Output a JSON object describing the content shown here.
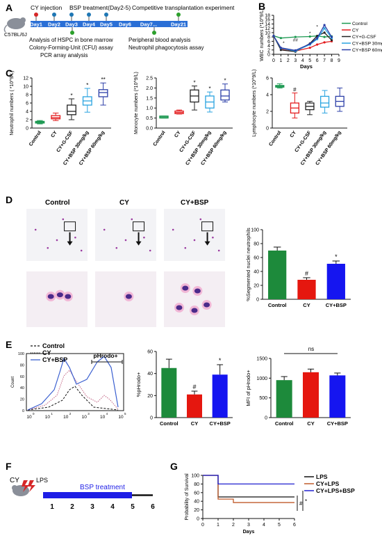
{
  "panels": {
    "A": {
      "letter": "A",
      "events_top": [
        "CY injection",
        "BSP treatment(Day2-5)",
        "Competitive transplantation experiment"
      ],
      "days": [
        "Day1",
        "Day2",
        "Day3",
        "Day4",
        "Day5",
        "Day6",
        "Day7...",
        "Day21"
      ],
      "mouse_strain": "C57BL/6J",
      "notes_bottom_left": [
        "Analysis of HSPC in bone marrow",
        "Colony-Forming-Unit (CFU) assay",
        "PCR array analysis"
      ],
      "notes_bottom_right": [
        "Peripheral blood analysis",
        "Neutrophil phagocytosis assay"
      ]
    },
    "B": {
      "letter": "B"
    },
    "C": {
      "letter": "C"
    },
    "D": {
      "letter": "D",
      "image_labels": [
        "Control",
        "CY",
        "CY+BSP"
      ]
    },
    "E": {
      "letter": "E",
      "flow_legend": [
        "Control",
        "CY",
        "CY+BSP"
      ],
      "gate_label": "pHrodo+",
      "flow_ylabel": "Count",
      "flow_xticks": [
        "10",
        "10",
        "10",
        "10",
        "10",
        "10"
      ],
      "flow_xexp": [
        "0",
        "1",
        "2",
        "3",
        "4",
        "5"
      ],
      "flow_yticks": [
        "0",
        "20",
        "40",
        "60",
        "80",
        "100"
      ],
      "ns_label": "ns"
    },
    "F": {
      "letter": "F",
      "cy_label": "CY",
      "lps_label": "LPS",
      "treatment_label": "BSP treatment",
      "days": [
        "1",
        "2",
        "3",
        "4",
        "5",
        "6"
      ]
    },
    "G": {
      "letter": "G"
    }
  },
  "colors": {
    "control": "#1a9850",
    "cy": "#e31a1c",
    "cy_gcsf": "#222222",
    "bsp30": "#29a3e0",
    "bsp60": "#2c3fa8",
    "bsp": "#1f1ff5",
    "bar_green": "#1d8a3b",
    "bar_red": "#e5170f",
    "bar_blue": "#1515f0",
    "surv_lps": "#111111",
    "surv_cylps": "#c05a2a",
    "surv_bsp": "#1f1fd0"
  },
  "chart_data": [
    {
      "panel": "B",
      "type": "line",
      "ylabel": "WBC numbers (*10^9/L)",
      "xlabel": "Days",
      "x": [
        0,
        1,
        3,
        5,
        6,
        7,
        8
      ],
      "xlim": [
        0,
        9
      ],
      "ylim": [
        0,
        18
      ],
      "xticks": [
        "0",
        "1",
        "2",
        "3",
        "4",
        "5",
        "6",
        "7",
        "8",
        "9"
      ],
      "yticks": [
        "0",
        "2",
        "4",
        "6",
        "8",
        "10",
        "12",
        "14",
        "16",
        "18"
      ],
      "series": [
        {
          "name": "Control",
          "values": [
            8.5,
            7.5,
            8.0,
            8.2,
            8.5,
            8.0,
            8.3
          ]
        },
        {
          "name": "CY",
          "values": [
            8.5,
            2.5,
            1.5,
            3.0,
            4.5,
            5.5,
            6.0
          ]
        },
        {
          "name": "CY+G-CSF",
          "values": [
            8.5,
            2.0,
            1.2,
            5.0,
            8.5,
            10.0,
            6.5
          ]
        },
        {
          "name": "CY+BSP 30mg/kg",
          "values": [
            8.5,
            2.8,
            1.5,
            4.5,
            7.0,
            12.0,
            7.5
          ]
        },
        {
          "name": "CY+BSP 60mg/kg",
          "values": [
            8.5,
            3.0,
            1.8,
            4.8,
            7.5,
            13.5,
            8.0
          ]
        }
      ],
      "sig_marks": [
        "*",
        "##",
        "*",
        "*"
      ]
    },
    {
      "panel": "C1",
      "type": "box",
      "ylabel": "Neutrophil numbers ( *10^9/L)",
      "ylim": [
        0,
        12
      ],
      "yticks": [
        "0",
        "2",
        "4",
        "6",
        "8",
        "10",
        "12"
      ],
      "categories": [
        "Control",
        "CY",
        "CY+G-CSF",
        "CY+BSP 30mg/kg",
        "CY+BSP 60mg/kg"
      ],
      "boxes": [
        {
          "min": 1.0,
          "q1": 1.2,
          "median": 1.4,
          "q3": 1.6,
          "max": 1.8
        },
        {
          "min": 1.8,
          "q1": 2.2,
          "median": 2.5,
          "q3": 3.0,
          "max": 3.6
        },
        {
          "min": 2.0,
          "q1": 3.2,
          "median": 4.0,
          "q3": 5.5,
          "max": 7.0
        },
        {
          "min": 3.8,
          "q1": 5.5,
          "median": 6.5,
          "q3": 7.5,
          "max": 9.5
        },
        {
          "min": 5.5,
          "q1": 7.5,
          "median": 8.5,
          "q3": 9.2,
          "max": 10.8
        }
      ],
      "sig": [
        "",
        "",
        "*",
        "*",
        "**"
      ]
    },
    {
      "panel": "C2",
      "type": "box",
      "ylabel": "Monocyte numbers (*10^9/L)",
      "ylim": [
        0,
        2.5
      ],
      "yticks": [
        "0.0",
        "0.5",
        "1.0",
        "1.5",
        "2.0",
        "2.5"
      ],
      "categories": [
        "Control",
        "CY",
        "CY+G-CSF",
        "CY+BSP 30mg/kg",
        "CY+BSP 60mg/kg"
      ],
      "boxes": [
        {
          "min": 0.5,
          "q1": 0.5,
          "median": 0.55,
          "q3": 0.6,
          "max": 0.6
        },
        {
          "min": 0.7,
          "q1": 0.72,
          "median": 0.78,
          "q3": 0.85,
          "max": 0.9
        },
        {
          "min": 0.9,
          "q1": 1.3,
          "median": 1.6,
          "q3": 1.9,
          "max": 2.1
        },
        {
          "min": 0.8,
          "q1": 1.0,
          "median": 1.3,
          "q3": 1.6,
          "max": 1.8
        },
        {
          "min": 1.3,
          "q1": 1.4,
          "median": 1.6,
          "q3": 1.9,
          "max": 2.2
        }
      ],
      "sig": [
        "",
        "",
        "*",
        "*",
        "*"
      ]
    },
    {
      "panel": "C3",
      "type": "box",
      "ylabel": "Lymphocyte numbers (*10^9/L)",
      "ylim": [
        0,
        6
      ],
      "yticks": [
        "0",
        "2",
        "4",
        "6"
      ],
      "categories": [
        "Control",
        "CY",
        "CY+G-CSF",
        "CY+BSP 30mg/kg",
        "CY+BSP 60mg/kg"
      ],
      "boxes": [
        {
          "min": 4.8,
          "q1": 4.9,
          "median": 5.0,
          "q3": 5.1,
          "max": 5.3
        },
        {
          "min": 1.2,
          "q1": 1.8,
          "median": 2.4,
          "q3": 3.0,
          "max": 4.2
        },
        {
          "min": 1.6,
          "q1": 2.2,
          "median": 2.6,
          "q3": 3.0,
          "max": 3.2
        },
        {
          "min": 1.8,
          "q1": 2.5,
          "median": 3.0,
          "q3": 3.8,
          "max": 4.5
        },
        {
          "min": 2.0,
          "q1": 2.6,
          "median": 3.2,
          "q3": 3.8,
          "max": 4.8
        }
      ],
      "sig": [
        "",
        "#",
        "",
        "",
        ""
      ]
    },
    {
      "panel": "D",
      "type": "bar",
      "ylabel": "%Segmented nuclei neutrophils",
      "ylim": [
        0,
        100
      ],
      "yticks": [
        "0",
        "20",
        "40",
        "60",
        "80",
        "100"
      ],
      "categories": [
        "Control",
        "CY",
        "CY+BSP"
      ],
      "values": [
        70,
        28,
        51
      ],
      "errors": [
        5,
        3,
        4
      ],
      "sig": [
        "",
        "#",
        "*"
      ]
    },
    {
      "panel": "E2",
      "type": "bar",
      "ylabel": "%pHrodo+",
      "ylim": [
        0,
        60
      ],
      "yticks": [
        "0",
        "20",
        "40",
        "60"
      ],
      "categories": [
        "Control",
        "CY",
        "CY+BSP"
      ],
      "values": [
        45,
        21,
        39
      ],
      "errors": [
        8,
        3,
        9
      ],
      "sig": [
        "",
        "#",
        "*"
      ]
    },
    {
      "panel": "E3",
      "type": "bar",
      "ylabel": "MFI of pHrodo+",
      "ylim": [
        0,
        1500
      ],
      "yticks": [
        "0",
        "500",
        "1000",
        "1500"
      ],
      "categories": [
        "Control",
        "CY",
        "CY+BSP"
      ],
      "values": [
        950,
        1150,
        1070
      ],
      "errors": [
        90,
        80,
        60
      ],
      "sig": [
        "",
        "",
        ""
      ]
    },
    {
      "panel": "G",
      "type": "line",
      "ylabel": "Probability of Survival",
      "xlabel": "Days",
      "xlim": [
        0,
        6
      ],
      "ylim": [
        0,
        100
      ],
      "xticks": [
        "0",
        "1",
        "2",
        "3",
        "4",
        "5",
        "6"
      ],
      "yticks": [
        "0",
        "20",
        "40",
        "60",
        "80",
        "100"
      ],
      "series": [
        {
          "name": "LPS",
          "steps": [
            [
              0,
              100
            ],
            [
              1,
              100
            ],
            [
              1,
              50
            ],
            [
              6,
              50
            ]
          ]
        },
        {
          "name": "CY+LPS",
          "steps": [
            [
              0,
              100
            ],
            [
              1,
              100
            ],
            [
              1,
              45
            ],
            [
              2,
              45
            ],
            [
              2,
              37
            ],
            [
              6,
              37
            ]
          ]
        },
        {
          "name": "CY+LPS+BSP",
          "steps": [
            [
              0,
              100
            ],
            [
              1,
              100
            ],
            [
              1,
              80
            ],
            [
              6,
              80
            ]
          ]
        }
      ],
      "sig": [
        "#",
        "*"
      ]
    }
  ]
}
